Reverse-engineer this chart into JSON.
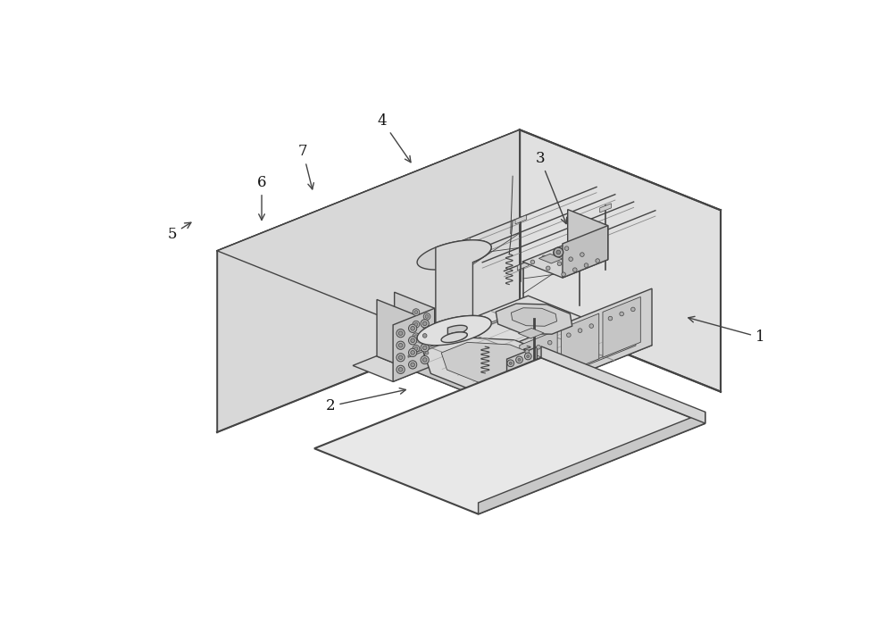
{
  "bg_color": "#ffffff",
  "lc": "#444444",
  "lc_light": "#888888",
  "lc_very_light": "#aaaaaa",
  "fill_base": "#e8e8e8",
  "fill_base_side": "#d8d8d8",
  "fill_wall": "#e0e0e0",
  "fill_wall_side": "#d0d0d0",
  "fill_top_cover": "#e5e5e5",
  "fill_top_front": "#c8c8c8",
  "fill_machine_top": "#dcdcdc",
  "fill_machine_front": "#c8c8c8",
  "fill_machine_side": "#d0d0d0",
  "fill_oct": "#d5d5d5",
  "fill_box": "#d8d8d8",
  "fill_box_front": "#c5c5c5",
  "fill_box_side": "#cccccc",
  "fill_cyl": "#d5d5d5",
  "fill_cyl_top": "#e0e0e0",
  "fill_panel": "#cacaca"
}
